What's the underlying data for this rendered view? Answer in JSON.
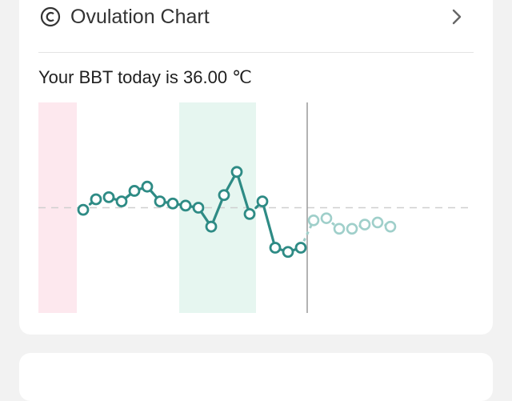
{
  "header": {
    "title": "Ovulation Chart",
    "icon": "copyright-circle-icon",
    "chevron_icon": "chevron-right-icon"
  },
  "bbt_text": "Your BBT today is 36.00 ℃",
  "colors": {
    "line": "#2e8b85",
    "line_future": "#9fcfca",
    "period_band": "#fde8ee",
    "fertile_band": "#e6f6f0",
    "today_line": "#9a9a9a",
    "reference_line": "#cfcfcf"
  },
  "chart_data": {
    "type": "line",
    "x_count": 34,
    "ylim": [
      0,
      1
    ],
    "reference_value": 0.5,
    "today_index": 21,
    "period_days": [
      0,
      2
    ],
    "fertile_days": [
      11,
      16
    ],
    "points": [
      {
        "i": 3,
        "v": 0.49,
        "seg": "dashed"
      },
      {
        "i": 4,
        "v": 0.54,
        "seg": "dashed"
      },
      {
        "i": 5,
        "v": 0.55,
        "seg": "solid"
      },
      {
        "i": 6,
        "v": 0.53,
        "seg": "solid"
      },
      {
        "i": 7,
        "v": 0.58,
        "seg": "solid"
      },
      {
        "i": 8,
        "v": 0.6,
        "seg": "solid"
      },
      {
        "i": 9,
        "v": 0.53,
        "seg": "solid"
      },
      {
        "i": 10,
        "v": 0.52,
        "seg": "solid"
      },
      {
        "i": 11,
        "v": 0.51,
        "seg": "solid"
      },
      {
        "i": 12,
        "v": 0.5,
        "seg": "solid"
      },
      {
        "i": 13,
        "v": 0.41,
        "seg": "solid"
      },
      {
        "i": 14,
        "v": 0.56,
        "seg": "solid"
      },
      {
        "i": 15,
        "v": 0.67,
        "seg": "solid"
      },
      {
        "i": 16,
        "v": 0.47,
        "seg": "dashed"
      },
      {
        "i": 17,
        "v": 0.53,
        "seg": "solid"
      },
      {
        "i": 18,
        "v": 0.31,
        "seg": "solid"
      },
      {
        "i": 19,
        "v": 0.29,
        "seg": "solid"
      },
      {
        "i": 20,
        "v": 0.31,
        "seg": "solid"
      }
    ],
    "future_points": [
      {
        "i": 21,
        "v": 0.44
      },
      {
        "i": 22,
        "v": 0.45
      },
      {
        "i": 23,
        "v": 0.4
      },
      {
        "i": 24,
        "v": 0.4
      },
      {
        "i": 25,
        "v": 0.42
      },
      {
        "i": 26,
        "v": 0.43
      },
      {
        "i": 27,
        "v": 0.41
      }
    ]
  }
}
